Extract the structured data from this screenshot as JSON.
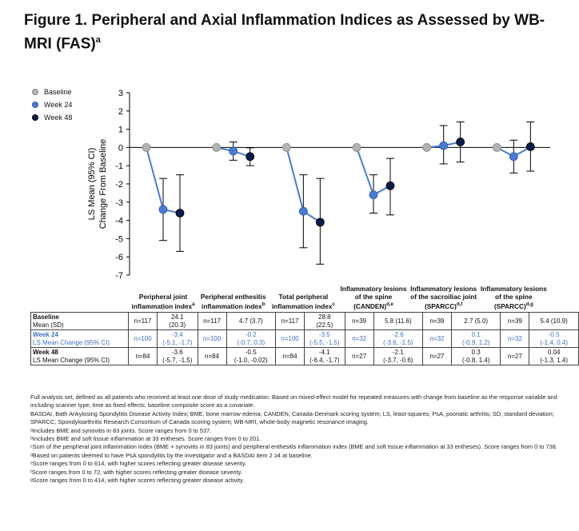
{
  "title_main": "Figure 1. Peripheral and Axial Inflammation Indices as Assessed by WB-MRI (FAS)",
  "title_sup": "a",
  "chart_data": {
    "type": "scatter",
    "title": "Figure 1. Peripheral and Axial Inflammation Indices as Assessed by WB-MRI (FAS)",
    "ylabel_line1": "LS Mean (95% CI)",
    "ylabel_line2": "Change From Baseline",
    "ylim": [
      -7,
      3
    ],
    "yticks": [
      "3",
      "2",
      "1",
      "0",
      "-1",
      "-2",
      "-3",
      "-4",
      "-5",
      "-6",
      "-7"
    ],
    "legend": [
      {
        "name": "Baseline",
        "color": "#b3b3b3"
      },
      {
        "name": "Week 24",
        "color": "#4a7bd0"
      },
      {
        "name": "Week 48",
        "color": "#0b1d4a"
      }
    ],
    "line_color": "#4a7bd0",
    "categories": [
      {
        "label": "Peripheral joint inflammation index",
        "sup": "a",
        "baseline": 0,
        "w24": -3.4,
        "w24_ci": [
          -5.1,
          -1.7
        ],
        "w48": -3.6,
        "w48_ci": [
          -5.7,
          -1.5
        ]
      },
      {
        "label": "Peripheral enthesitis inflammation index",
        "sup": "b",
        "baseline": 0,
        "w24": -0.2,
        "w24_ci": [
          -0.7,
          0.3
        ],
        "w48": -0.5,
        "w48_ci": [
          -1.0,
          -0.02
        ]
      },
      {
        "label": "Total peripheral inflammation index",
        "sup": "c",
        "baseline": 0,
        "w24": -3.5,
        "w24_ci": [
          -5.5,
          -1.5
        ],
        "w48": -4.1,
        "w48_ci": [
          -6.4,
          -1.7
        ]
      },
      {
        "label": "Inflammatory lesions of the spine (CANDEN)",
        "sup": "d,e",
        "baseline": 0,
        "w24": -2.6,
        "w24_ci": [
          -3.6,
          -1.5
        ],
        "w48": -2.1,
        "w48_ci": [
          -3.7,
          -0.6
        ]
      },
      {
        "label": "Inflammatory lesions of the sacroiliac joint (SPARCC)",
        "sup": "d,f",
        "baseline": 0,
        "w24": 0.1,
        "w24_ci": [
          -0.9,
          1.2
        ],
        "w48": 0.3,
        "w48_ci": [
          -0.8,
          1.4
        ]
      },
      {
        "label": "Inflammatory lesions of the spine (SPARCC)",
        "sup": "d,g",
        "baseline": 0,
        "w24": -0.5,
        "w24_ci": [
          -1.4,
          0.4
        ],
        "w48": 0.04,
        "w48_ci": [
          -1.3,
          1.4
        ]
      }
    ]
  },
  "table": {
    "rows": [
      {
        "label": "Baseline",
        "sublabel": "Mean (SD)",
        "style": "black",
        "cells": [
          [
            "n=117",
            "24.1",
            "(20.3)"
          ],
          [
            "n=117",
            "4.7 (3.7)",
            ""
          ],
          [
            "n=117",
            "28.8",
            "(22.5)"
          ],
          [
            "n=39",
            "5.8 (11.6)",
            ""
          ],
          [
            "n=39",
            "2.7 (5.0)",
            ""
          ],
          [
            "n=39",
            "5.4 (10.9)",
            ""
          ]
        ]
      },
      {
        "label": "Week 24",
        "sublabel": "LS Mean Change (95% CI)",
        "style": "blue",
        "cells": [
          [
            "n=100",
            "-3.4",
            "(-5.1, -1.7)"
          ],
          [
            "n=100",
            "-0.2",
            "(-0.7, 0.3)"
          ],
          [
            "n=100",
            "-3.5",
            "(-5.5, -1.5)"
          ],
          [
            "n=32",
            "-2.6",
            "(-3.6, -1.5)"
          ],
          [
            "n=32",
            "0.1",
            "(-0.9, 1.2)"
          ],
          [
            "n=32",
            "-0.5",
            "(-1.4, 0.4)"
          ]
        ]
      },
      {
        "label": "Week 48",
        "sublabel": "LS Mean Change (95% CI)",
        "style": "black",
        "cells": [
          [
            "n=84",
            "-3.6",
            "(-5.7, -1.5)"
          ],
          [
            "n=84",
            "-0.5",
            "(-1.0, -0.02)"
          ],
          [
            "n=84",
            "-4.1",
            "(-6.4, -1.7)"
          ],
          [
            "n=27",
            "-2.1",
            "(-3.7, -0.6)"
          ],
          [
            "n=27",
            "0.3",
            "(-0.8, 1.4)"
          ],
          [
            "n=27",
            "0.04",
            "(-1.3, 1.4)"
          ]
        ]
      }
    ]
  },
  "footnotes": [
    "Full analysis set, defined as all patients who received at least one dose of study medication. Based on mixed-effect model for repeated measures with change from baseline as the response variable and including scanner type, time as fixed effects; baseline composite score as a covariate.",
    "BASDAI, Bath Ankylosing Spondylitis Disease Activity Index;  BME, bone marrow edema; CANDEN, Canada-Denmark scoring system; LS, least-squares; PsA, psoriatic arthritis; SD, standard deviation; SPARCC, Spondyloarthritis Research Consortium of Canada scoring system; WB-MRI, whole-body magnetic resonance imaging.",
    "ᵃIncludes BME and synovitis in 83 joints. Score ranges from 0 to 537.",
    "ᵇIncludes BME and soft tissue inflammation at 33 entheses. Score ranges from 0 to 201.",
    "ᶜSum of the peripheral joint inflammation index (BME + synovitis in 83 joints) and peripheral enthesitis inflammation index (BME and soft tissue inflammation at 33 entheses). Score ranges from 0 to 738.",
    "ᵈBased on patients deemed to have PsA spondylitis by the investigator and a BASDAI item 2 ≥4 at baseline.",
    "ᵉScore ranges from 0 to 614, with higher scores reflecting greater disease severity.",
    "ᶠScore ranges from 0 to 72, with higher scores reflecting greater disease severity.",
    "ᵍScore ranges from 0 to 414, with higher scores reflecting greater disease activity."
  ]
}
